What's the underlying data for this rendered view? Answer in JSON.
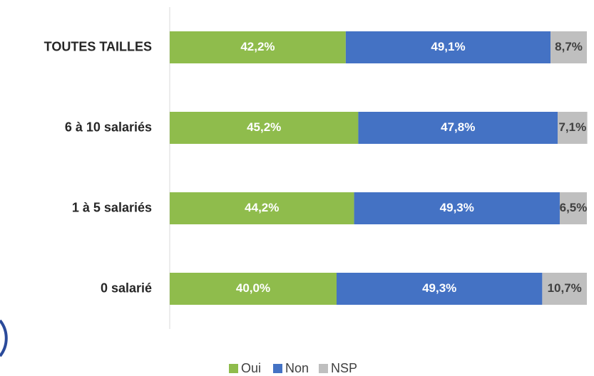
{
  "chart_data": {
    "type": "stacked-bar-horizontal",
    "categories": [
      "TOUTES TAILLES",
      "6 à 10 salariés",
      "1 à 5 salariés",
      "0 salarié"
    ],
    "series": [
      {
        "name": "Oui",
        "color": "#8fbc4c",
        "values": [
          42.2,
          45.2,
          44.2,
          40.0
        ],
        "value_labels": [
          "42,2%",
          "45,2%",
          "44,2%",
          "40,0%"
        ]
      },
      {
        "name": "Non",
        "color": "#4472c4",
        "values": [
          49.1,
          47.8,
          49.3,
          49.3
        ],
        "value_labels": [
          "49,1%",
          "47,8%",
          "49,3%",
          "49,3%"
        ]
      },
      {
        "name": "NSP",
        "color": "#bfbfbf",
        "values": [
          8.7,
          7.1,
          6.5,
          10.7
        ],
        "value_labels": [
          "8,7%",
          "7,1%",
          "6,5%",
          "10,7%"
        ]
      }
    ],
    "xlim": [
      0,
      100
    ],
    "legend": "bottom"
  }
}
